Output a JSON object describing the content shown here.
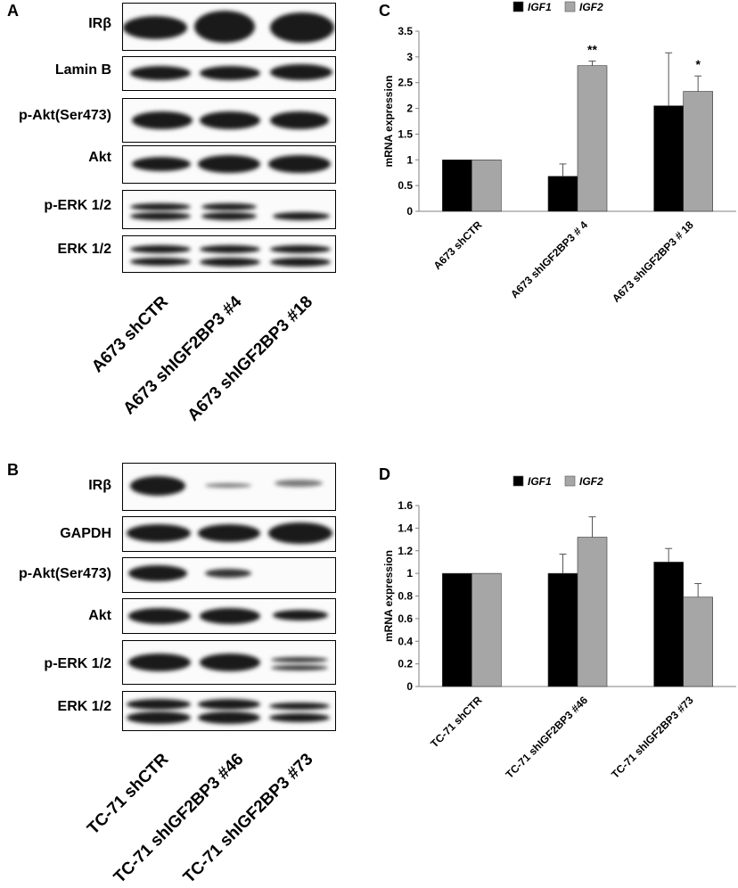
{
  "panels": {
    "A": {
      "letter": "A",
      "rows": [
        "IRβ",
        "Lamin B",
        "p-Akt(Ser473)",
        "Akt",
        "p-ERK 1/2",
        "ERK 1/2"
      ],
      "lanes": [
        "A673 shCTR",
        "A673 shIGF2BP3 #4",
        "A673 shIGF2BP3 #18"
      ]
    },
    "B": {
      "letter": "B",
      "rows": [
        "IRβ",
        "GAPDH",
        "p-Akt(Ser473)",
        "Akt",
        "p-ERK 1/2",
        "ERK 1/2"
      ],
      "lanes": [
        "TC-71 shCTR",
        "TC-71 shIGF2BP3 #46",
        "TC-71 shIGF2BP3 #73"
      ]
    },
    "C": {
      "letter": "C"
    },
    "D": {
      "letter": "D"
    }
  },
  "colors": {
    "igf1": "#000000",
    "igf2": "#a6a6a6",
    "axis": "#808080"
  },
  "chart_data": [
    {
      "type": "bar",
      "panel": "C",
      "categories": [
        "A673 shCTR",
        "A673 shIGF2BP3 # 4",
        "A673 shIGF2BP3 # 18"
      ],
      "series": [
        {
          "name": "IGF1",
          "values": [
            1.0,
            0.68,
            2.05
          ],
          "errors": [
            0,
            0.24,
            1.03
          ]
        },
        {
          "name": "IGF2",
          "values": [
            1.0,
            2.83,
            2.33
          ],
          "errors": [
            0,
            0.09,
            0.3
          ]
        }
      ],
      "annotations": [
        "",
        "**",
        "*"
      ],
      "ylabel": "mRNA expression",
      "ylim": [
        0,
        3.5
      ],
      "yticks": [
        "0",
        "0.5",
        "1",
        "1.5",
        "2",
        "2.5",
        "3",
        "3.5"
      ],
      "legend": "top-center"
    },
    {
      "type": "bar",
      "panel": "D",
      "categories": [
        "TC-71 shCTR",
        "TC-71 shIGF2BP3 #46",
        "TC-71 shIGF2BP3 #73"
      ],
      "series": [
        {
          "name": "IGF1",
          "values": [
            1.0,
            1.0,
            1.1
          ],
          "errors": [
            0,
            0.17,
            0.12
          ]
        },
        {
          "name": "IGF2",
          "values": [
            1.0,
            1.32,
            0.79
          ],
          "errors": [
            0,
            0.18,
            0.12
          ]
        }
      ],
      "annotations": [
        "",
        "",
        ""
      ],
      "ylabel": "mRNA expression",
      "ylim": [
        0,
        1.6
      ],
      "yticks": [
        "0",
        "0.2",
        "0.4",
        "0.6",
        "0.8",
        "1",
        "1.2",
        "1.4",
        "1.6"
      ],
      "legend": "top-center"
    }
  ]
}
